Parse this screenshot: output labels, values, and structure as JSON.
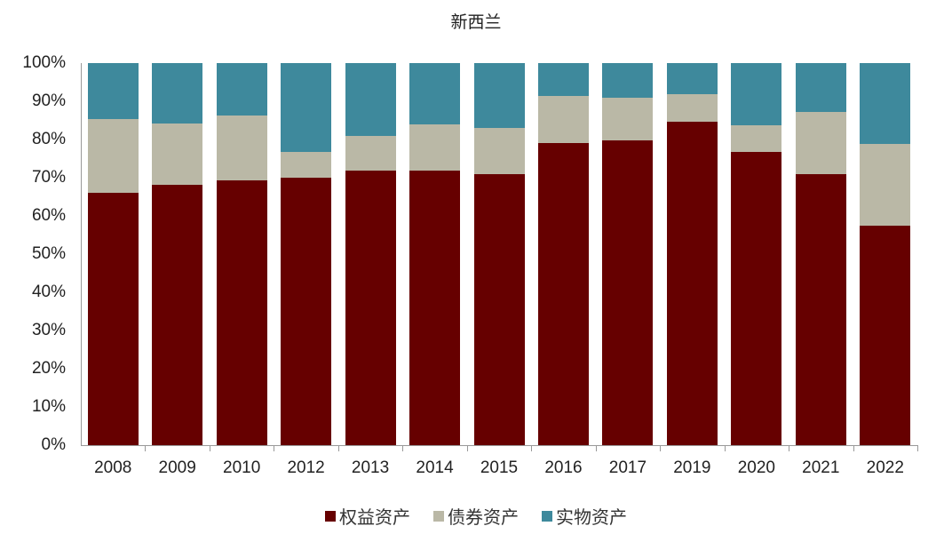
{
  "chart_data": {
    "type": "bar",
    "stacked": true,
    "title": "新西兰",
    "xlabel": "",
    "ylabel": "",
    "ylim": [
      0,
      100
    ],
    "yticks": [
      "0%",
      "10%",
      "20%",
      "30%",
      "40%",
      "50%",
      "60%",
      "70%",
      "80%",
      "90%",
      "100%"
    ],
    "grid": false,
    "legend_position": "bottom",
    "categories": [
      "2008",
      "2009",
      "2010",
      "2012",
      "2013",
      "2014",
      "2015",
      "2016",
      "2017",
      "2019",
      "2020",
      "2021",
      "2022"
    ],
    "series": [
      {
        "name": "权益资产",
        "color": "#660000",
        "values": [
          66.0,
          68.1,
          69.3,
          70.0,
          71.9,
          71.9,
          70.9,
          79.0,
          79.8,
          84.7,
          76.7,
          70.9,
          57.4
        ]
      },
      {
        "name": "债券资产",
        "color": "#BAB8A6",
        "values": [
          19.3,
          16.1,
          17.0,
          6.7,
          9.0,
          12.0,
          12.1,
          12.4,
          11.1,
          7.2,
          7.0,
          16.3,
          21.4
        ]
      },
      {
        "name": "实物资产",
        "color": "#3E899C",
        "values": [
          14.7,
          15.8,
          13.7,
          23.3,
          19.1,
          16.1,
          17.0,
          8.6,
          9.1,
          8.1,
          16.3,
          12.8,
          21.2
        ]
      }
    ]
  }
}
